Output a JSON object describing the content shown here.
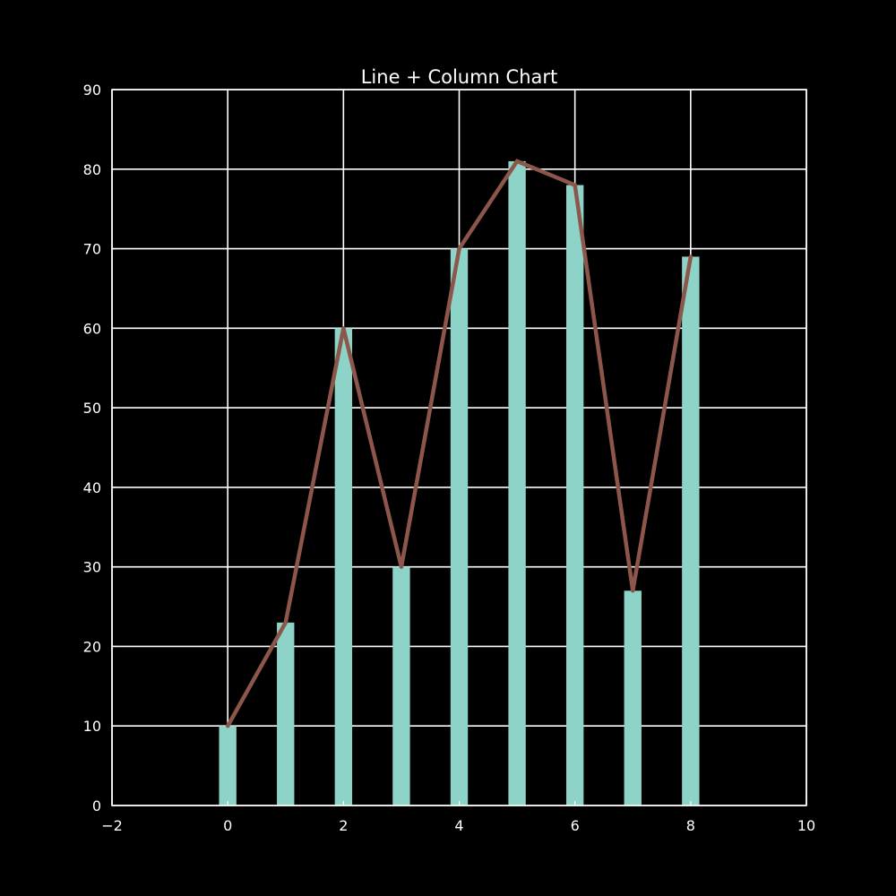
{
  "chart_data": {
    "type": "bar",
    "title": "Line + Column Chart",
    "xlabel": "",
    "ylabel": "",
    "x": [
      0,
      1,
      2,
      3,
      4,
      5,
      6,
      7,
      8
    ],
    "series": [
      {
        "type": "bar",
        "values": [
          10,
          23,
          60,
          30,
          70,
          81,
          78,
          27,
          69
        ],
        "color": "#8dd3c7"
      },
      {
        "type": "line",
        "values": [
          10,
          23,
          60,
          30,
          70,
          81,
          78,
          27,
          69
        ],
        "color": "#8c564b"
      }
    ],
    "xlim": [
      -2,
      10
    ],
    "ylim": [
      0,
      90
    ],
    "x_ticks": [
      "−2",
      "0",
      "2",
      "4",
      "6",
      "8",
      "10"
    ],
    "y_ticks": [
      "0",
      "10",
      "20",
      "30",
      "40",
      "50",
      "60",
      "70",
      "80",
      "90"
    ],
    "grid": true,
    "background_color": "#000000",
    "foreground_color": "#ffffff"
  }
}
